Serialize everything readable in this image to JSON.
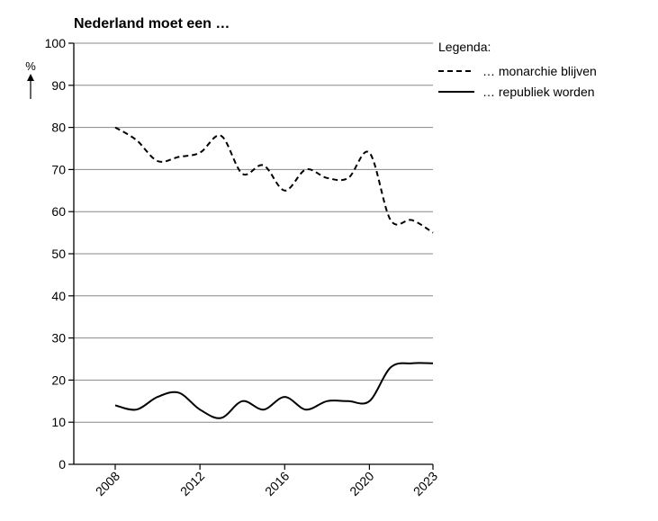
{
  "chart_data": {
    "type": "line",
    "title": "Nederland moet een …",
    "ylabel": "%",
    "xlabel": "",
    "ylim": [
      0,
      100
    ],
    "xlim": [
      2008,
      2023
    ],
    "y_ticks": [
      0,
      10,
      20,
      30,
      40,
      50,
      60,
      70,
      80,
      90,
      100
    ],
    "x_ticks": [
      2008,
      2012,
      2016,
      2020,
      2023
    ],
    "grid": "horizontal",
    "legend": {
      "title": "Legenda:",
      "placement": "top-right"
    },
    "series": [
      {
        "name": "… monarchie blijven",
        "style": "dashed",
        "x": [
          2008,
          2009,
          2010,
          2011,
          2012,
          2013,
          2014,
          2015,
          2016,
          2017,
          2018,
          2019,
          2020,
          2021,
          2022,
          2023
        ],
        "values": [
          80,
          77,
          72,
          73,
          74,
          78,
          69,
          71,
          65,
          70,
          68,
          68,
          74,
          58,
          58,
          55
        ]
      },
      {
        "name": "… republiek worden",
        "style": "solid",
        "x": [
          2008,
          2009,
          2010,
          2011,
          2012,
          2013,
          2014,
          2015,
          2016,
          2017,
          2018,
          2019,
          2020,
          2021,
          2022,
          2023
        ],
        "values": [
          14,
          13,
          16,
          17,
          13,
          11,
          15,
          13,
          16,
          13,
          15,
          15,
          15,
          23,
          24,
          24
        ]
      }
    ]
  }
}
